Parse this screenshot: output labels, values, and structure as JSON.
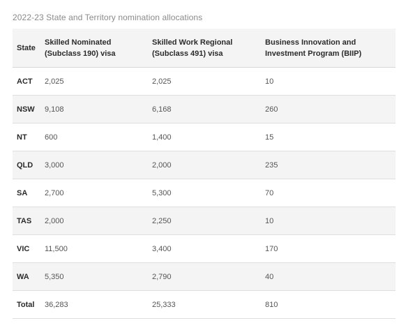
{
  "caption": "2022-23 State and Territory nomination allocations",
  "table": {
    "headers": {
      "state": "State",
      "subclass190": "Skilled Nominated (Subclass 190) visa",
      "subclass491": "Skilled Work Regional (Subclass 491) visa",
      "biip": "Business Innovation and Investment Program (BIIP)"
    },
    "rows": [
      {
        "state": "ACT",
        "subclass190": "2,025",
        "subclass491": "2,025",
        "biip": "10"
      },
      {
        "state": "NSW",
        "subclass190": "9,108",
        "subclass491": "6,168",
        "biip": "260"
      },
      {
        "state": "NT",
        "subclass190": "600",
        "subclass491": "1,400",
        "biip": "15"
      },
      {
        "state": "QLD",
        "subclass190": "3,000",
        "subclass491": "2,000",
        "biip": "235"
      },
      {
        "state": "SA",
        "subclass190": "2,700",
        "subclass491": "5,300",
        "biip": "70"
      },
      {
        "state": "TAS",
        "subclass190": "2,000",
        "subclass491": "2,250",
        "biip": "10"
      },
      {
        "state": "VIC",
        "subclass190": "11,500",
        "subclass491": "3,400",
        "biip": "170"
      },
      {
        "state": "WA",
        "subclass190": "5,350",
        "subclass491": "2,790",
        "biip": "40"
      },
      {
        "state": "Total",
        "subclass190": "36,283",
        "subclass491": "25,333",
        "biip": "810"
      }
    ]
  }
}
